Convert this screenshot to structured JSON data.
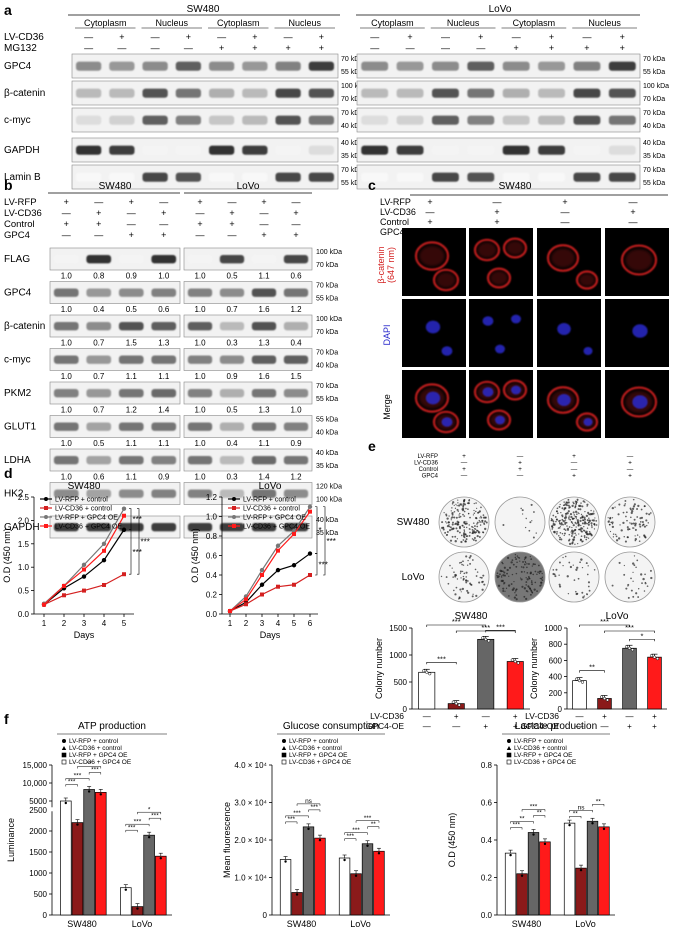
{
  "panel_a": {
    "letter": "a",
    "cell_lines": [
      "SW480",
      "LoVo"
    ],
    "fractions": [
      "Cytoplasm",
      "Nucleus",
      "Cytoplasm",
      "Nucleus"
    ],
    "treatments": [
      "LV-CD36",
      "MG132"
    ],
    "lv_cd36": [
      "—",
      "+",
      "—",
      "+",
      "—",
      "+",
      "—",
      "+"
    ],
    "mg132": [
      "—",
      "—",
      "—",
      "—",
      "+",
      "+",
      "+",
      "+"
    ],
    "rows": [
      "GPC4",
      "β-catenin",
      "c-myc",
      "GAPDH",
      "Lamin B"
    ],
    "markers": [
      [
        "70 kDa",
        "55 kDa"
      ],
      [
        "100 kDa",
        "70 kDa"
      ],
      [
        "70 kDa",
        "40 kDa"
      ],
      [
        "40 kDa",
        "35 kDa"
      ],
      [
        "70 kDa",
        "55 kDa"
      ]
    ]
  },
  "panel_b": {
    "letter": "b",
    "cell_lines": [
      "SW480",
      "LoVo"
    ],
    "treatments": [
      "LV-RFP",
      "LV-CD36",
      "Control",
      "GPC4"
    ],
    "signs": [
      [
        "+",
        "—",
        "+",
        "—"
      ],
      [
        "—",
        "+",
        "—",
        "+"
      ],
      [
        "+",
        "+",
        "—",
        "—"
      ],
      [
        "—",
        "—",
        "+",
        "+"
      ]
    ],
    "rows": [
      "FLAG",
      "GPC4",
      "β-catenin",
      "c-myc",
      "PKM2",
      "GLUT1",
      "LDHA",
      "HK2",
      "GAPDH"
    ],
    "quant_sw480": [
      [
        "1.0",
        "0.8",
        "0.9",
        "1.0"
      ],
      [
        "1.0",
        "0.4",
        "0.5",
        "0.6"
      ],
      [
        "1.0",
        "0.7",
        "1.5",
        "1.3"
      ],
      [
        "1.0",
        "0.7",
        "1.1",
        "1.1"
      ],
      [
        "1.0",
        "0.7",
        "1.2",
        "1.4"
      ],
      [
        "1.0",
        "0.5",
        "1.1",
        "1.1"
      ],
      [
        "1.0",
        "0.6",
        "1.1",
        "0.9"
      ]
    ],
    "quant_lovo": [
      [
        "1.0",
        "0.5",
        "1.1",
        "0.6"
      ],
      [
        "1.0",
        "0.7",
        "1.6",
        "1.2"
      ],
      [
        "1.0",
        "0.3",
        "1.3",
        "0.4"
      ],
      [
        "1.0",
        "0.9",
        "1.6",
        "1.5"
      ],
      [
        "1.0",
        "0.5",
        "1.3",
        "1.0"
      ],
      [
        "1.0",
        "0.4",
        "1.1",
        "0.9"
      ],
      [
        "1.0",
        "0.3",
        "1.4",
        "1.2"
      ]
    ],
    "markers": [
      [
        "100 kDa",
        "70 kDa"
      ],
      [
        "70 kDa",
        "55 kDa"
      ],
      [
        "100 kDa",
        "70 kDa"
      ],
      [
        "70 kDa",
        "40 kDa"
      ],
      [
        "70 kDa",
        "55 kDa"
      ],
      [
        "55 kDa",
        "40 kDa"
      ],
      [
        "40 kDa",
        "35 kDa"
      ],
      [
        "120 kDa",
        "100 kDa"
      ],
      [
        "40 kDa",
        "35 kDa"
      ]
    ]
  },
  "panel_c": {
    "letter": "c",
    "title": "SW480",
    "treatments": [
      "LV-RFP",
      "LV-CD36",
      "Control",
      "GPC4"
    ],
    "signs": [
      [
        "+",
        "—",
        "+",
        "—"
      ],
      [
        "—",
        "+",
        "—",
        "+"
      ],
      [
        "+",
        "+",
        "—",
        "—"
      ],
      [
        "—",
        "—",
        "+",
        "+"
      ]
    ],
    "row_labels": [
      "β-catenin",
      "(647 nm)",
      "DAPI",
      "Merge"
    ],
    "colors": {
      "beta_catenin": "#d42020",
      "dapi": "#2c2ccc"
    }
  },
  "panel_d": {
    "letter": "d",
    "charts": [
      "SW480",
      "LoVo"
    ]
  },
  "panel_e": {
    "letter": "e",
    "treatments": [
      "LV-RFP",
      "LV-CD36",
      "Control",
      "GPC4"
    ],
    "signs": [
      [
        "+",
        "—",
        "+",
        "—"
      ],
      [
        "—",
        "+",
        "—",
        "+"
      ],
      [
        "+",
        "+",
        "—",
        "—"
      ],
      [
        "—",
        "—",
        "+",
        "+"
      ]
    ],
    "row_labels": [
      "SW480",
      "LoVo"
    ],
    "x_rows": [
      "LV-CD36",
      "GPC4-OE"
    ],
    "x_signs": [
      [
        "—",
        "+",
        "—",
        "+"
      ],
      [
        "—",
        "—",
        "+",
        "+"
      ]
    ]
  },
  "panel_f": {
    "letter": "f"
  },
  "chart_data": [
    {
      "id": "d-sw480",
      "type": "line",
      "title": "SW480",
      "xlabel": "Days",
      "ylabel": "O.D (450 nm)",
      "x": [
        1,
        2,
        3,
        4,
        5
      ],
      "xlim": [
        0.5,
        5.5
      ],
      "ylim": [
        0,
        2.5
      ],
      "yticks": [
        0.0,
        0.5,
        1.0,
        1.5,
        2.0,
        2.5
      ],
      "ytick_labels": [
        "0.0",
        "0.5",
        "1.0",
        "1.5",
        "2.0",
        "2.5"
      ],
      "series": [
        {
          "name": "LV-RFP + control",
          "color": "#000000",
          "marker": "circle",
          "values": [
            0.2,
            0.55,
            0.8,
            1.15,
            1.8
          ]
        },
        {
          "name": "LV-CD36 + control",
          "color": "#d42020",
          "marker": "square",
          "values": [
            0.2,
            0.4,
            0.5,
            0.62,
            0.85
          ]
        },
        {
          "name": "LV-RFP + GPC4 OE",
          "color": "#777777",
          "marker": "circle",
          "values": [
            0.22,
            0.6,
            1.05,
            1.5,
            2.25
          ]
        },
        {
          "name": "LV-CD36 + GPC4 OE",
          "color": "#ff1a1a",
          "marker": "square",
          "values": [
            0.2,
            0.6,
            0.95,
            1.35,
            2.1
          ]
        }
      ],
      "annotations": [
        "***",
        "***",
        "***"
      ]
    },
    {
      "id": "d-lovo",
      "type": "line",
      "title": "LoVo",
      "xlabel": "Days",
      "ylabel": "O.D (450 nm)",
      "x": [
        1,
        2,
        3,
        4,
        5,
        6
      ],
      "xlim": [
        0.5,
        6.5
      ],
      "ylim": [
        0,
        1.2
      ],
      "yticks": [
        0.0,
        0.2,
        0.4,
        0.6,
        0.8,
        1.0,
        1.2
      ],
      "ytick_labels": [
        "0.0",
        "0.2",
        "0.4",
        "0.6",
        "0.8",
        "1.0",
        "1.2"
      ],
      "series": [
        {
          "name": "LV-RFP + control",
          "color": "#000000",
          "marker": "circle",
          "values": [
            0.03,
            0.12,
            0.3,
            0.45,
            0.5,
            0.62
          ]
        },
        {
          "name": "LV-CD36 + control",
          "color": "#d42020",
          "marker": "square",
          "values": [
            0.03,
            0.1,
            0.2,
            0.28,
            0.3,
            0.4
          ]
        },
        {
          "name": "LV-RFP + GPC4 OE",
          "color": "#777777",
          "marker": "circle",
          "values": [
            0.03,
            0.18,
            0.45,
            0.7,
            0.85,
            1.1
          ]
        },
        {
          "name": "LV-CD36 + GPC4 OE",
          "color": "#ff1a1a",
          "marker": "square",
          "values": [
            0.03,
            0.15,
            0.4,
            0.65,
            0.82,
            1.05
          ]
        }
      ],
      "annotations": [
        "*",
        "***",
        "***"
      ]
    },
    {
      "id": "e-sw480",
      "type": "bar",
      "title": "SW480",
      "ylabel": "Colony number",
      "ylim": [
        0,
        1500
      ],
      "yticks": [
        0,
        500,
        1000,
        1500
      ],
      "ytick_labels": [
        "0",
        "500",
        "1000",
        "1500"
      ],
      "values": [
        680,
        100,
        1290,
        880
      ],
      "colors": [
        "#ffffff",
        "#8b1a1a",
        "#666666",
        "#ff1a1a"
      ],
      "annotations": [
        "***",
        "***",
        "***",
        "***"
      ]
    },
    {
      "id": "e-lovo",
      "type": "bar",
      "title": "LoVo",
      "ylabel": "Colony number",
      "ylim": [
        0,
        1000
      ],
      "yticks": [
        0,
        200,
        400,
        600,
        800,
        1000
      ],
      "ytick_labels": [
        "0",
        "200",
        "400",
        "600",
        "800",
        "1000"
      ],
      "values": [
        350,
        130,
        750,
        640
      ],
      "colors": [
        "#ffffff",
        "#8b1a1a",
        "#666666",
        "#ff1a1a"
      ],
      "annotations": [
        "**",
        "***",
        "***",
        "*"
      ]
    },
    {
      "id": "f-atp",
      "type": "bar",
      "title": "ATP production",
      "ylabel": "Luminance",
      "categories": [
        "SW480",
        "LoVo"
      ],
      "yticks": [
        0,
        500,
        1000,
        1500,
        2000,
        2500,
        5000,
        10000,
        15000
      ],
      "ytick_labels": [
        "0",
        "500",
        "1000",
        "1500",
        "2000",
        "2500",
        "5000",
        "10,000",
        "15,000"
      ],
      "series": [
        {
          "name": "LV-RFP + control",
          "values": [
            5000,
            650
          ]
        },
        {
          "name": "LV-CD36 + control",
          "values": [
            2200,
            200
          ]
        },
        {
          "name": "LV-RFP + GPC4 OE",
          "values": [
            8200,
            1900
          ]
        },
        {
          "name": "LV-CD36 + GPC4 OE",
          "values": [
            7400,
            1400
          ]
        }
      ],
      "colors": [
        "#ffffff",
        "#8b1a1a",
        "#666666",
        "#ff1a1a"
      ],
      "annotations": [
        "***",
        "***",
        "***",
        "**",
        "***",
        "***",
        "***",
        "*"
      ]
    },
    {
      "id": "f-glucose",
      "type": "bar",
      "title": "Glucose consumption",
      "ylabel": "Mean fluorescence",
      "categories": [
        "SW480",
        "LoVo"
      ],
      "ylim": [
        0,
        40000
      ],
      "yticks": [
        0,
        10000,
        20000,
        30000,
        40000
      ],
      "ytick_labels": [
        "0",
        "1.0 × 10⁴",
        "2.0 × 10⁴",
        "3.0 × 10⁴",
        "4.0 × 10⁴"
      ],
      "series": [
        {
          "name": "LV-RFP + control",
          "values": [
            14800,
            15200
          ]
        },
        {
          "name": "LV-CD36 + control",
          "values": [
            6000,
            11000
          ]
        },
        {
          "name": "LV-RFP + GPC4 OE",
          "values": [
            23500,
            19000
          ]
        },
        {
          "name": "LV-CD36 + GPC4 OE",
          "values": [
            20500,
            17000
          ]
        }
      ],
      "colors": [
        "#ffffff",
        "#8b1a1a",
        "#666666",
        "#ff1a1a"
      ],
      "annotations": [
        "***",
        "***",
        "***",
        "ns",
        "***",
        "***",
        "**",
        "***"
      ]
    },
    {
      "id": "f-lactate",
      "type": "bar",
      "title": "Lactate production",
      "ylabel": "O.D (450 nm)",
      "categories": [
        "SW480",
        "LoVo"
      ],
      "ylim": [
        0,
        0.8
      ],
      "yticks": [
        0.0,
        0.2,
        0.4,
        0.6,
        0.8
      ],
      "ytick_labels": [
        "0.0",
        "0.2",
        "0.4",
        "0.6",
        "0.8"
      ],
      "series": [
        {
          "name": "LV-RFP + control",
          "values": [
            0.33,
            0.49
          ]
        },
        {
          "name": "LV-CD36 + control",
          "values": [
            0.22,
            0.25
          ]
        },
        {
          "name": "LV-RFP + GPC4 OE",
          "values": [
            0.44,
            0.5
          ]
        },
        {
          "name": "LV-CD36 + GPC4 OE",
          "values": [
            0.39,
            0.47
          ]
        }
      ],
      "colors": [
        "#ffffff",
        "#8b1a1a",
        "#666666",
        "#ff1a1a"
      ],
      "annotations": [
        "***",
        "**",
        "**",
        "***",
        "**",
        "ns",
        "**"
      ]
    }
  ]
}
